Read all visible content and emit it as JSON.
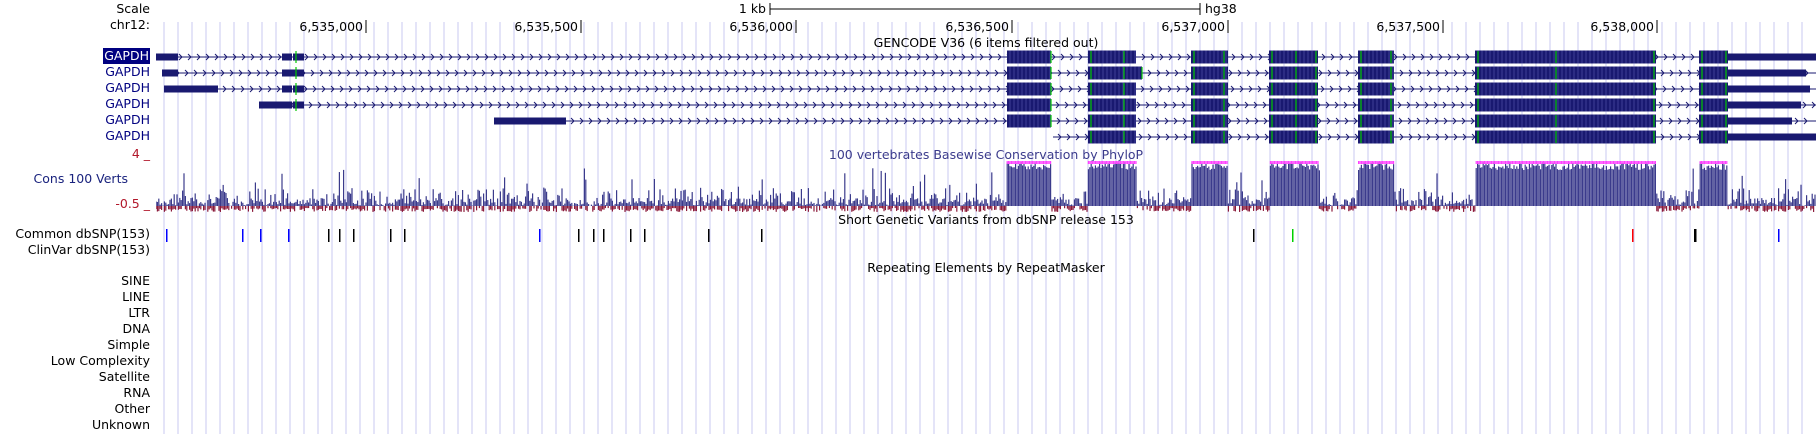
{
  "ruler": {
    "scale_label": "Scale",
    "chrom_label": "chr12:",
    "scale_bar_label": "1 kb",
    "assembly": "hg38",
    "ticks": [
      "6,535,000",
      "6,535,500",
      "6,536,000",
      "6,536,500",
      "6,537,000",
      "6,537,500",
      "6,538,000"
    ]
  },
  "tracks": {
    "gencode": {
      "title": "GENCODE V36 (6 items filtered out)",
      "transcripts": [
        "GAPDH",
        "GAPDH",
        "GAPDH",
        "GAPDH",
        "GAPDH",
        "GAPDH"
      ],
      "color": "#191970"
    },
    "conservation": {
      "title": "100 vertebrates Basewise Conservation by PhyloP",
      "track_label": "Cons 100 Verts",
      "y_max_label": "4 _",
      "y_min_label": "-0.5 _",
      "positive_color": "#3b3b8c",
      "negative_color": "#8b1a3a"
    },
    "dbsnp": {
      "title": "Short Genetic Variants from dbSNP release 153",
      "tracks": [
        "Common dbSNP(153)",
        "ClinVar dbSNP(153)"
      ]
    },
    "repeatmasker": {
      "title": "Repeating Elements by RepeatMasker",
      "classes": [
        "SINE",
        "LINE",
        "LTR",
        "DNA",
        "Simple",
        "Low Complexity",
        "Satellite",
        "RNA",
        "Other",
        "Unknown"
      ]
    }
  },
  "colors": {
    "grid": "#c8c8f0",
    "gene": "#191970",
    "highlight": "#00c800",
    "variant_blue": "#0000ff",
    "variant_red": "#ff0000",
    "variant_green": "#00d000",
    "variant_black": "#000000"
  }
}
